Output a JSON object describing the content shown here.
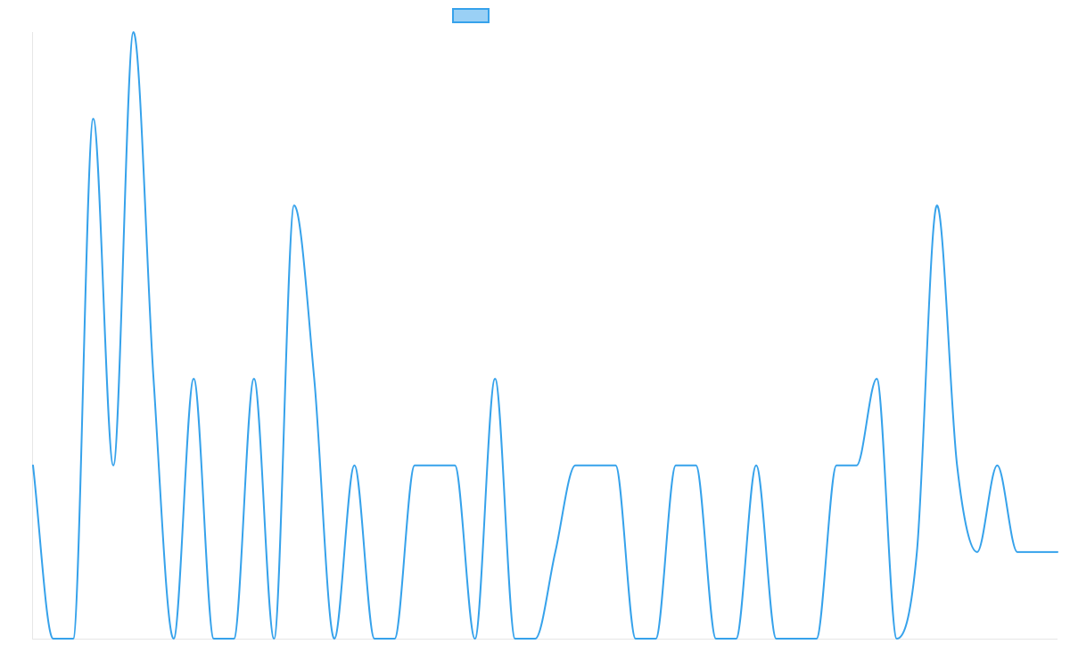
{
  "colors": {
    "line": "#36a2eb",
    "legend_fill": "#9ad0f5",
    "axis": "#e6e6e6"
  },
  "chart_data": {
    "type": "line",
    "title": "",
    "xlabel": "",
    "ylabel": "",
    "grid": false,
    "ticks_visible": false,
    "legend": {
      "position": "top",
      "entries": [
        ""
      ]
    },
    "ylim": [
      0,
      7
    ],
    "x": [
      0,
      1,
      2,
      3,
      4,
      5,
      6,
      7,
      8,
      9,
      10,
      11,
      12,
      13,
      14,
      15,
      16,
      17,
      18,
      19,
      20,
      21,
      22,
      23,
      24,
      25,
      26,
      27,
      28,
      29,
      30,
      31,
      32,
      33,
      34,
      35,
      36,
      37,
      38,
      39,
      40,
      41,
      42,
      43,
      44,
      45,
      46,
      47,
      48,
      49,
      50,
      51
    ],
    "series": [
      {
        "name": "",
        "values": [
          2,
          0,
          0,
          6,
          2,
          7,
          3,
          0,
          3,
          0,
          0,
          3,
          0,
          5,
          3,
          0,
          2,
          0,
          0,
          2,
          2,
          2,
          0,
          3,
          0,
          0,
          1,
          2,
          2,
          2,
          0,
          0,
          2,
          2,
          0,
          0,
          2,
          0,
          0,
          0,
          2,
          2,
          3,
          0,
          1,
          5,
          2,
          1,
          2,
          1,
          1,
          1
        ]
      }
    ]
  }
}
